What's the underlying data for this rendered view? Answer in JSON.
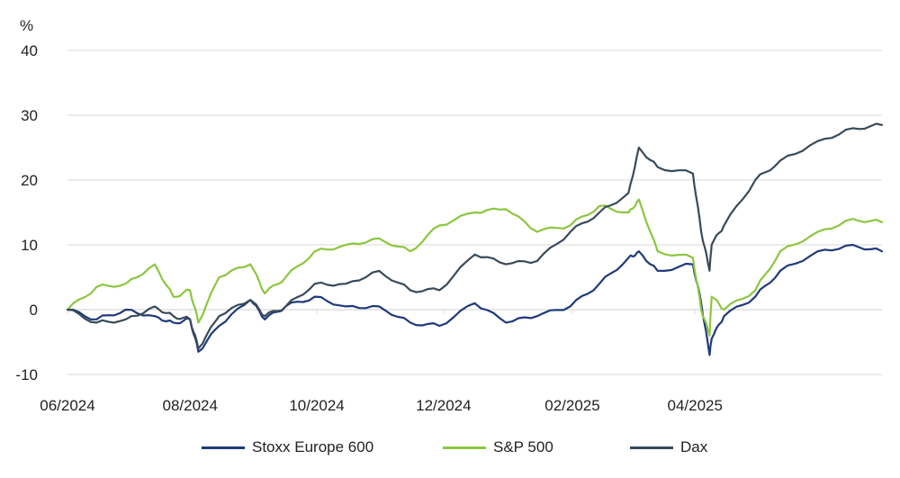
{
  "chart_data": {
    "type": "line",
    "unit_label": "%",
    "y_ticks": [
      "40",
      "30",
      "20",
      "10",
      "0",
      "-10"
    ],
    "x_ticks": [
      "06/2024",
      "08/2024",
      "10/2024",
      "12/2024",
      "02/2025",
      "04/2025"
    ],
    "ylim": [
      -10,
      40
    ],
    "xlim": [
      "2024-06-03",
      "2025-06-30"
    ],
    "grid": true,
    "legend_position": "bottom",
    "x": [
      "2024-06-03",
      "2024-06-17",
      "2024-07-01",
      "2024-07-15",
      "2024-07-24",
      "2024-08-01",
      "2024-08-05",
      "2024-08-15",
      "2024-08-30",
      "2024-09-06",
      "2024-09-16",
      "2024-09-30",
      "2024-10-15",
      "2024-10-31",
      "2024-11-15",
      "2024-11-29",
      "2024-12-16",
      "2024-12-31",
      "2025-01-15",
      "2025-01-31",
      "2025-02-14",
      "2025-02-28",
      "2025-03-05",
      "2025-03-14",
      "2025-03-31",
      "2025-04-04",
      "2025-04-08",
      "2025-04-09",
      "2025-04-15",
      "2025-04-30",
      "2025-05-12",
      "2025-05-30",
      "2025-06-16",
      "2025-06-30"
    ],
    "series": [
      {
        "name": "Stoxx Europe 600",
        "color": "#1f3a7a",
        "values": [
          0,
          -1.5,
          0,
          -1,
          -2,
          -1.5,
          -6.5,
          -2.5,
          1.5,
          -1.5,
          0.5,
          2,
          0.5,
          0.5,
          -2,
          -2.5,
          1,
          -2,
          -1,
          0.5,
          4,
          8,
          9,
          6,
          7,
          1,
          -7,
          -4.5,
          -1,
          2,
          6,
          9,
          10,
          9
        ]
      },
      {
        "name": "S&P 500",
        "color": "#8cc63f",
        "values": [
          0,
          3.5,
          4,
          7,
          2,
          3,
          -2,
          5,
          7,
          2.5,
          5,
          9,
          10,
          11,
          9,
          13,
          15,
          15.5,
          12,
          13,
          16,
          15,
          17,
          9,
          8,
          0,
          -4,
          2,
          0,
          3,
          9,
          12,
          14,
          13.5
        ]
      },
      {
        "name": "Dax",
        "color": "#394a59",
        "values": [
          0,
          -2,
          -1.5,
          0.5,
          -1,
          -1.5,
          -6,
          -1,
          1.5,
          -1,
          0.5,
          4,
          4,
          6,
          3,
          3,
          8.5,
          7,
          7.5,
          12,
          15,
          18,
          25,
          22,
          21,
          12,
          6,
          10,
          13,
          20,
          23,
          26,
          28,
          28.5
        ]
      }
    ]
  }
}
